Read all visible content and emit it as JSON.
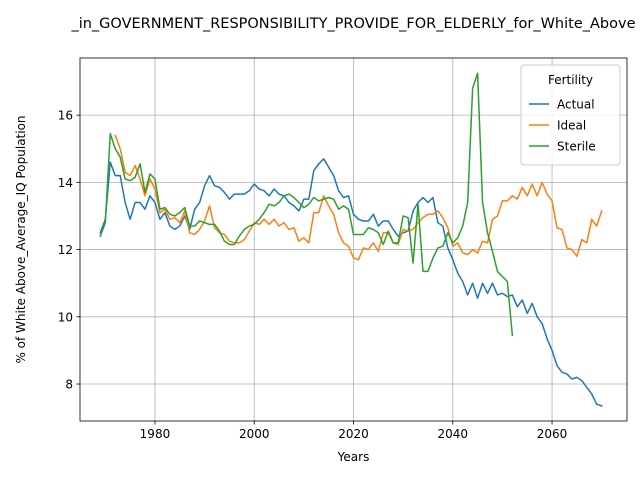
{
  "chart_data": {
    "type": "line",
    "title": "_in_GOVERNMENT_RESPONSIBILITY_PROVIDE_FOR_ELDERLY_for_White_Above",
    "xlabel": "Years",
    "ylabel": "% of White Above_Average_IQ Population",
    "xlim": [
      1964.9,
      2075.1
    ],
    "ylim": [
      6.9,
      17.7
    ],
    "xticks": [
      1980,
      2000,
      2020,
      2040,
      2060
    ],
    "yticks": [
      8,
      10,
      12,
      14,
      16
    ],
    "grid": true,
    "legend": {
      "title": "Fertility",
      "placement": "top-right"
    },
    "series": [
      {
        "name": "Actual",
        "color": "#1f77b4",
        "x": [
          1969,
          1970,
          1971,
          1972,
          1973,
          1974,
          1975,
          1976,
          1977,
          1978,
          1979,
          1980,
          1981,
          1982,
          1983,
          1984,
          1985,
          1986,
          1987,
          1988,
          1989,
          1990,
          1991,
          1992,
          1993,
          1994,
          1995,
          1996,
          1997,
          1998,
          1999,
          2000,
          2001,
          2002,
          2003,
          2004,
          2005,
          2006,
          2007,
          2008,
          2009,
          2010,
          2011,
          2012,
          2013,
          2014,
          2015,
          2016,
          2017,
          2018,
          2019,
          2020,
          2021,
          2022,
          2023,
          2024,
          2025,
          2026,
          2027,
          2028,
          2029,
          2030,
          2031,
          2032,
          2033,
          2034,
          2035,
          2036,
          2037,
          2038,
          2039,
          2040,
          2041,
          2042,
          2043,
          2044,
          2045,
          2046,
          2047,
          2048,
          2049,
          2050,
          2051,
          2052,
          2053,
          2054,
          2055,
          2056,
          2057,
          2058,
          2059,
          2060,
          2061,
          2062,
          2063,
          2064,
          2065,
          2066,
          2067,
          2068,
          2069,
          2070
        ],
        "y": [
          12.5,
          12.9,
          14.6,
          14.2,
          14.2,
          13.4,
          12.9,
          13.4,
          13.4,
          13.2,
          13.6,
          13.4,
          12.9,
          13.1,
          12.7,
          12.6,
          12.7,
          13.0,
          12.6,
          13.2,
          13.4,
          13.9,
          14.2,
          13.9,
          13.85,
          13.7,
          13.5,
          13.65,
          13.65,
          13.65,
          13.75,
          13.95,
          13.8,
          13.75,
          13.6,
          13.8,
          13.65,
          13.6,
          13.4,
          13.3,
          13.15,
          13.5,
          13.5,
          14.35,
          14.55,
          14.7,
          14.45,
          14.2,
          13.75,
          13.55,
          13.6,
          13.05,
          12.9,
          12.85,
          12.85,
          13.05,
          12.7,
          12.85,
          12.85,
          12.6,
          12.4,
          12.5,
          12.55,
          13.15,
          13.4,
          13.55,
          13.4,
          13.55,
          12.8,
          12.7,
          12.05,
          11.7,
          11.3,
          11.05,
          10.65,
          11.0,
          10.55,
          11.0,
          10.7,
          11.0,
          10.65,
          10.7,
          10.6,
          10.65,
          10.3,
          10.5,
          10.1,
          10.4,
          10.0,
          9.8,
          9.35,
          9.0,
          8.55,
          8.35,
          8.3,
          8.15,
          8.2,
          8.1,
          7.9,
          7.7,
          7.4,
          7.35
        ]
      },
      {
        "name": "Ideal",
        "color": "#ff7f0e",
        "x": [
          1972,
          1973,
          1974,
          1975,
          1976,
          1977,
          1978,
          1979,
          1980,
          1981,
          1982,
          1983,
          1984,
          1985,
          1986,
          1987,
          1988,
          1989,
          1990,
          1991,
          1992,
          1993,
          1994,
          1995,
          1996,
          1997,
          1998,
          1999,
          2000,
          2001,
          2002,
          2003,
          2004,
          2005,
          2006,
          2007,
          2008,
          2009,
          2010,
          2011,
          2012,
          2013,
          2014,
          2015,
          2016,
          2017,
          2018,
          2019,
          2020,
          2021,
          2022,
          2023,
          2024,
          2025,
          2026,
          2027,
          2028,
          2029,
          2030,
          2031,
          2032,
          2033,
          2034,
          2035,
          2036,
          2037,
          2038,
          2039,
          2040,
          2041,
          2042,
          2043,
          2044,
          2045,
          2046,
          2047,
          2048,
          2049,
          2050,
          2051,
          2052,
          2053,
          2054,
          2055,
          2056,
          2057,
          2058,
          2059,
          2060,
          2061,
          2062,
          2063,
          2064,
          2065,
          2066,
          2067,
          2068,
          2069,
          2070
        ],
        "y": [
          15.4,
          15.0,
          14.3,
          14.2,
          14.5,
          14.1,
          13.6,
          14.1,
          13.8,
          13.1,
          13.2,
          12.9,
          12.95,
          12.8,
          13.15,
          12.5,
          12.45,
          12.6,
          12.85,
          13.3,
          12.65,
          12.5,
          12.45,
          12.25,
          12.2,
          12.2,
          12.3,
          12.55,
          12.8,
          12.75,
          12.9,
          12.75,
          12.9,
          12.7,
          12.8,
          12.6,
          12.65,
          12.25,
          12.35,
          12.2,
          13.1,
          13.1,
          13.6,
          13.3,
          13.05,
          12.5,
          12.2,
          12.1,
          11.75,
          11.7,
          12.05,
          12.0,
          12.2,
          11.95,
          12.5,
          12.5,
          12.2,
          12.15,
          12.6,
          12.55,
          12.6,
          12.8,
          12.95,
          13.05,
          13.05,
          13.15,
          12.95,
          12.65,
          12.1,
          12.2,
          11.9,
          11.85,
          12.0,
          11.9,
          12.25,
          12.2,
          12.9,
          13.0,
          13.45,
          13.45,
          13.6,
          13.5,
          13.85,
          13.6,
          13.95,
          13.6,
          14.0,
          13.65,
          13.45,
          12.65,
          12.6,
          12.05,
          12.0,
          11.8,
          12.3,
          12.2,
          12.9,
          12.7,
          13.15
        ]
      },
      {
        "name": "Sterile",
        "color": "#2ca02c",
        "x": [
          1969,
          1970,
          1971,
          1972,
          1973,
          1974,
          1975,
          1976,
          1977,
          1978,
          1979,
          1980,
          1981,
          1982,
          1983,
          1984,
          1985,
          1986,
          1987,
          1988,
          1989,
          1990,
          1991,
          1992,
          1993,
          1994,
          1995,
          1996,
          1997,
          1998,
          1999,
          2000,
          2001,
          2002,
          2003,
          2004,
          2005,
          2006,
          2007,
          2008,
          2009,
          2010,
          2011,
          2012,
          2013,
          2014,
          2015,
          2016,
          2017,
          2018,
          2019,
          2020,
          2021,
          2022,
          2023,
          2024,
          2025,
          2026,
          2027,
          2028,
          2029,
          2030,
          2031,
          2032,
          2033,
          2034,
          2035,
          2036,
          2037,
          2038,
          2039,
          2040,
          2041,
          2042,
          2043,
          2044,
          2045,
          2046,
          2047,
          2048,
          2049,
          2050,
          2051,
          2052
        ],
        "y": [
          12.4,
          12.8,
          15.45,
          15.0,
          14.75,
          14.1,
          14.05,
          14.15,
          14.55,
          13.7,
          14.25,
          14.1,
          13.2,
          13.25,
          13.05,
          13.0,
          13.1,
          13.25,
          12.7,
          12.7,
          12.85,
          12.8,
          12.75,
          12.75,
          12.55,
          12.25,
          12.15,
          12.15,
          12.4,
          12.6,
          12.7,
          12.75,
          12.9,
          13.1,
          13.35,
          13.3,
          13.4,
          13.6,
          13.65,
          13.55,
          13.4,
          13.25,
          13.35,
          13.55,
          13.45,
          13.5,
          13.55,
          13.5,
          13.2,
          13.3,
          13.2,
          12.45,
          12.45,
          12.45,
          12.65,
          12.6,
          12.5,
          12.15,
          12.55,
          12.2,
          12.2,
          13.0,
          12.95,
          11.6,
          13.35,
          11.35,
          11.35,
          11.75,
          12.05,
          12.1,
          12.5,
          12.2,
          12.35,
          12.7,
          13.4,
          16.8,
          17.25,
          13.4,
          12.5,
          11.95,
          11.35,
          11.2,
          11.05,
          9.45
        ]
      }
    ]
  }
}
